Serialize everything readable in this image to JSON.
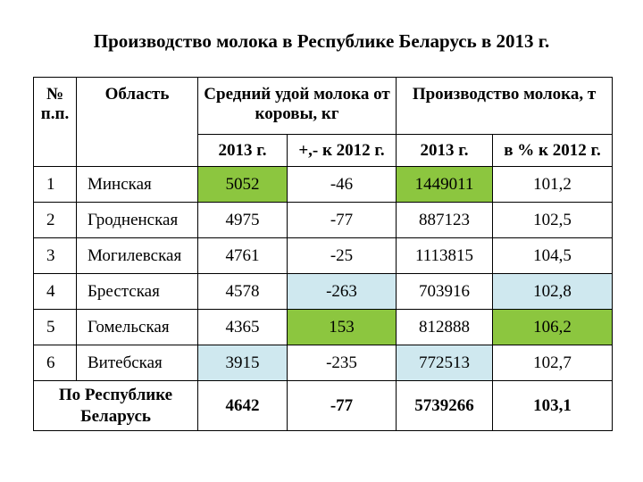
{
  "title": "Производство молока в Республике Беларусь в 2013 г.",
  "header": {
    "num": "№ п.п.",
    "region": "Область",
    "yield_group": "Средний удой молока от коровы, кг",
    "production_group": "Производство молока, т",
    "yield_2013": "2013 г.",
    "yield_change": "+,- к 2012 г.",
    "prod_2013": "2013 г.",
    "prod_percent": "в % к 2012 г."
  },
  "rows": [
    {
      "num": "1",
      "region": "Минская",
      "yield": "5052",
      "change": "-46",
      "production": "1449011",
      "percent": "101,2"
    },
    {
      "num": "2",
      "region": "Гродненская",
      "yield": "4975",
      "change": "-77",
      "production": "887123",
      "percent": "102,5"
    },
    {
      "num": "3",
      "region": "Могилевская",
      "yield": "4761",
      "change": "-25",
      "production": "1113815",
      "percent": "104,5"
    },
    {
      "num": "4",
      "region": "Брестская",
      "yield": "4578",
      "change": "-263",
      "production": "703916",
      "percent": "102,8"
    },
    {
      "num": "5",
      "region": "Гомельская",
      "yield": "4365",
      "change": "153",
      "production": "812888",
      "percent": "106,2"
    },
    {
      "num": "6",
      "region": "Витебская",
      "yield": "3915",
      "change": "-235",
      "production": "772513",
      "percent": "102,7"
    }
  ],
  "total": {
    "label": "По Республике Беларусь",
    "yield": "4642",
    "change": "-77",
    "production": "5739266",
    "percent": "103,1"
  },
  "colors": {
    "highlight_green": "#8cc63f",
    "highlight_blue": "#cfe8ef"
  }
}
